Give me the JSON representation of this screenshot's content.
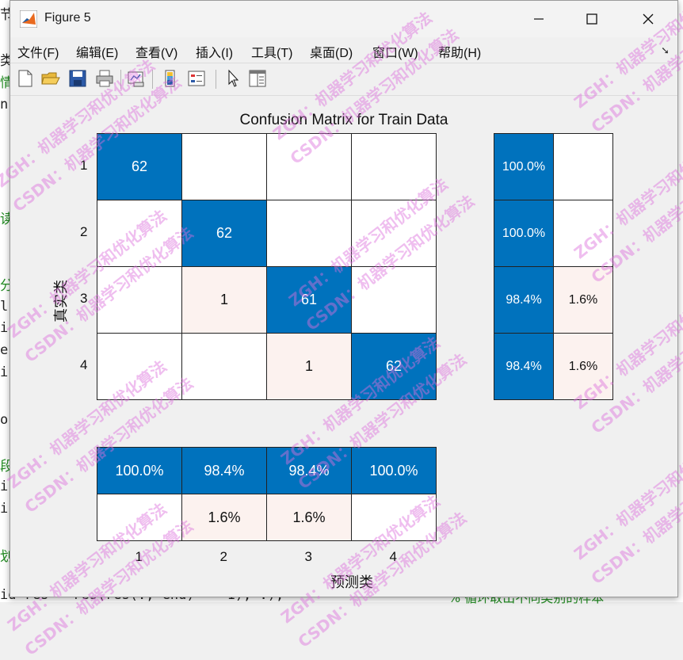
{
  "window": {
    "title": "Figure 5"
  },
  "menus": [
    "文件(F)",
    "编辑(E)",
    "查看(V)",
    "插入(I)",
    "工具(T)",
    "桌面(D)",
    "窗口(W)",
    "帮助(H)"
  ],
  "toolbar": [
    "new-figure-icon",
    "open-icon",
    "save-icon",
    "print-icon",
    "link-plot-icon",
    "colorbar-icon",
    "legend-icon",
    "pointer-icon",
    "property-inspector-icon"
  ],
  "chart_data": {
    "type": "heatmap",
    "title": "Confusion Matrix for Train Data",
    "ylabel": "真实类",
    "xlabel": "预测类",
    "row_labels": [
      "1",
      "2",
      "3",
      "4"
    ],
    "col_labels": [
      "1",
      "2",
      "3",
      "4"
    ],
    "matrix": [
      [
        62,
        0,
        0,
        0
      ],
      [
        0,
        62,
        0,
        0
      ],
      [
        0,
        1,
        61,
        0
      ],
      [
        0,
        0,
        1,
        62
      ]
    ],
    "row_summary": [
      [
        "100.0%",
        ""
      ],
      [
        "100.0%",
        ""
      ],
      [
        "98.4%",
        "1.6%"
      ],
      [
        "98.4%",
        "1.6%"
      ]
    ],
    "column_summary": [
      [
        "100.0%",
        "98.4%",
        "98.4%",
        "100.0%"
      ],
      [
        "",
        "1.6%",
        "1.6%",
        ""
      ]
    ],
    "colors": {
      "correct": "#0072bd",
      "incorrect": "#fcf2ef",
      "empty": "#ffffff"
    }
  },
  "watermark": {
    "line1": "ZGH：机器学习和优化算法",
    "line2": "CSDN：机器学习和优化算法"
  },
  "background": {
    "bottom_code": "id res = res(res(:, end) == 1), :);",
    "bottom_comment": "% 循环取出不同类别的样本"
  }
}
